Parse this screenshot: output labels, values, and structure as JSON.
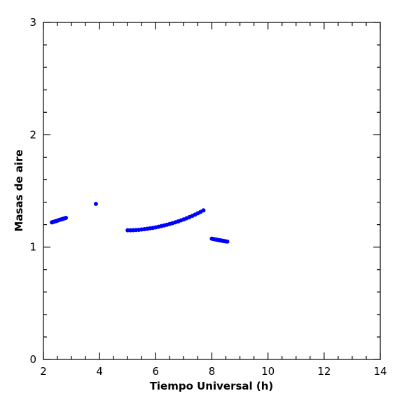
{
  "chart_data": {
    "type": "scatter",
    "title": "",
    "xlabel": "Tiempo Universal (h)",
    "ylabel": "Masas de aire",
    "xlim": [
      2,
      14
    ],
    "ylim": [
      0,
      3
    ],
    "xticks": [
      2,
      4,
      6,
      8,
      10,
      12,
      14
    ],
    "yticks": [
      0,
      1,
      2,
      3
    ],
    "xtick_labels": [
      "2",
      "4",
      "6",
      "8",
      "10",
      "12",
      "14"
    ],
    "ytick_labels": [
      "0",
      "1",
      "2",
      "3"
    ],
    "grid": false,
    "marker_color": "#0000ff",
    "series": [
      {
        "x": [
          2.3,
          2.35,
          2.4,
          2.45,
          2.5,
          2.55,
          2.6,
          2.65,
          2.7,
          2.75,
          2.8
        ],
        "y": [
          1.22,
          1.224,
          1.228,
          1.232,
          1.236,
          1.24,
          1.244,
          1.248,
          1.252,
          1.256,
          1.26
        ]
      },
      {
        "x": [
          3.87
        ],
        "y": [
          1.385
        ]
      },
      {
        "x": [
          5.0,
          5.1,
          5.2,
          5.3,
          5.4,
          5.5,
          5.6,
          5.7,
          5.8,
          5.9,
          6.0,
          6.1,
          6.2,
          6.3,
          6.4,
          6.5,
          6.6,
          6.7,
          6.8,
          6.9,
          7.0,
          7.1,
          7.2,
          7.3,
          7.4,
          7.5,
          7.6,
          7.7
        ],
        "y": [
          1.15,
          1.15,
          1.151,
          1.152,
          1.154,
          1.157,
          1.16,
          1.163,
          1.167,
          1.171,
          1.176,
          1.181,
          1.187,
          1.193,
          1.199,
          1.206,
          1.213,
          1.221,
          1.229,
          1.238,
          1.247,
          1.257,
          1.267,
          1.278,
          1.289,
          1.301,
          1.314,
          1.327
        ]
      },
      {
        "x": [
          8.0,
          8.05,
          8.1,
          8.15,
          8.2,
          8.25,
          8.3,
          8.35,
          8.4,
          8.45,
          8.5,
          8.55
        ],
        "y": [
          1.075,
          1.072,
          1.07,
          1.067,
          1.065,
          1.062,
          1.06,
          1.058,
          1.055,
          1.053,
          1.051,
          1.049
        ]
      }
    ]
  }
}
